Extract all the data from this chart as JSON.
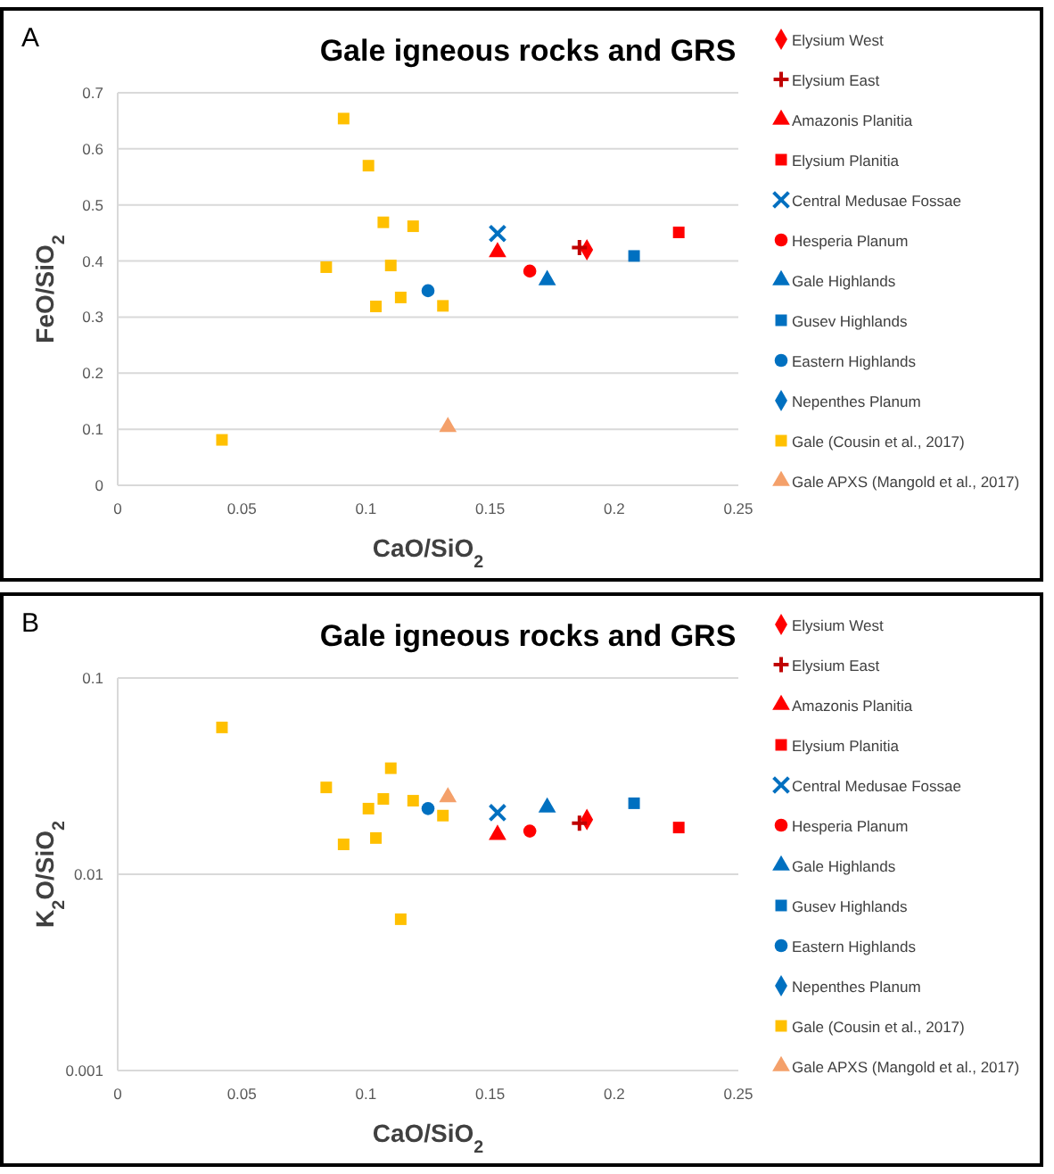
{
  "chart_data": [
    {
      "type": "scatter",
      "title": "Gale igneous rocks and GRS",
      "xlabel": "CaO/SiO$_{2}$",
      "ylabel": "FeO/SiO$_{2}$",
      "annotations": [
        "A"
      ],
      "xlim": [
        0,
        0.25
      ],
      "xticks": [
        0,
        0.05,
        0.1,
        0.15,
        0.2,
        0.25
      ],
      "ylim": [
        0,
        0.7
      ],
      "yticks": [
        0,
        0.1,
        0.2,
        0.3,
        0.4,
        0.5,
        0.6,
        0.7
      ],
      "grid": "y",
      "legend": "right",
      "series": [
        {
          "name": "Elysium West",
          "color": "#ff0000",
          "marker": "diamond",
          "x": [
            0.189
          ],
          "values": [
            0.42
          ]
        },
        {
          "name": "Elysium East",
          "color": "#c00000",
          "marker": "cross",
          "x": [
            0.186
          ],
          "values": [
            0.424
          ]
        },
        {
          "name": "Amazonis Planitia",
          "color": "#ff0000",
          "marker": "triangle",
          "x": [
            0.153
          ],
          "values": [
            0.416
          ]
        },
        {
          "name": "Elysium Planitia",
          "color": "#ff0000",
          "marker": "square",
          "x": [
            0.226
          ],
          "values": [
            0.451
          ]
        },
        {
          "name": "Central Medusae Fossae",
          "color": "#0070c0",
          "marker": "x",
          "x": [
            0.153
          ],
          "values": [
            0.449
          ]
        },
        {
          "name": "Hesperia Planum",
          "color": "#ff0000",
          "marker": "circle",
          "x": [
            0.166
          ],
          "values": [
            0.382
          ]
        },
        {
          "name": "Gale Highlands",
          "color": "#0070c0",
          "marker": "triangle",
          "x": [
            0.173
          ],
          "values": [
            0.366
          ]
        },
        {
          "name": "Gusev Highlands",
          "color": "#0070c0",
          "marker": "square",
          "x": [
            0.208
          ],
          "values": [
            0.409
          ]
        },
        {
          "name": "Eastern Highlands",
          "color": "#0070c0",
          "marker": "circle",
          "x": [
            0.125
          ],
          "values": [
            0.347
          ]
        },
        {
          "name": "Nepenthes Planum",
          "color": "#0070c0",
          "marker": "diamond",
          "x": [
            null
          ],
          "values": [
            null
          ]
        },
        {
          "name": "Gale (Cousin et al., 2017)",
          "color": "#ffc000",
          "marker": "square",
          "x": [
            0.091,
            0.101,
            0.107,
            0.119,
            0.084,
            0.11,
            0.104,
            0.114,
            0.131,
            0.042
          ],
          "values": [
            0.654,
            0.57,
            0.469,
            0.462,
            0.389,
            0.392,
            0.319,
            0.335,
            0.32,
            0.081
          ]
        },
        {
          "name": "Gale APXS (Mangold et al., 2017)",
          "color": "#f4a06a",
          "marker": "triangle",
          "x": [
            0.133
          ],
          "values": [
            0.104
          ]
        }
      ]
    },
    {
      "type": "scatter",
      "title": "Gale igneous rocks and GRS",
      "xlabel": "CaO/SiO$_{2}$",
      "ylabel": "K$_{2}$O/SiO$_{2}$",
      "annotations": [
        "B"
      ],
      "xlim": [
        0,
        0.25
      ],
      "xticks": [
        0,
        0.05,
        0.1,
        0.15,
        0.2,
        0.25
      ],
      "ylim": [
        0.001,
        0.1
      ],
      "yticks": [
        0.001,
        0.01,
        0.1
      ],
      "log": true,
      "grid": "y",
      "legend": "right",
      "series": [
        {
          "name": "Elysium West",
          "color": "#ff0000",
          "marker": "diamond",
          "x": [
            0.189
          ],
          "values": [
            0.019
          ]
        },
        {
          "name": "Elysium East",
          "color": "#c00000",
          "marker": "cross",
          "x": [
            0.186
          ],
          "values": [
            0.0182
          ]
        },
        {
          "name": "Amazonis Planitia",
          "color": "#ff0000",
          "marker": "triangle",
          "x": [
            0.153
          ],
          "values": [
            0.0159
          ]
        },
        {
          "name": "Elysium Planitia",
          "color": "#ff0000",
          "marker": "square",
          "x": [
            0.226
          ],
          "values": [
            0.0173
          ]
        },
        {
          "name": "Central Medusae Fossae",
          "color": "#0070c0",
          "marker": "x",
          "x": [
            0.153
          ],
          "values": [
            0.0206
          ]
        },
        {
          "name": "Hesperia Planum",
          "color": "#ff0000",
          "marker": "circle",
          "x": [
            0.166
          ],
          "values": [
            0.0166
          ]
        },
        {
          "name": "Gale Highlands",
          "color": "#0070c0",
          "marker": "triangle",
          "x": [
            0.173
          ],
          "values": [
            0.0219
          ]
        },
        {
          "name": "Gusev Highlands",
          "color": "#0070c0",
          "marker": "square",
          "x": [
            0.208
          ],
          "values": [
            0.023
          ]
        },
        {
          "name": "Eastern Highlands",
          "color": "#0070c0",
          "marker": "circle",
          "x": [
            0.125
          ],
          "values": [
            0.0216
          ]
        },
        {
          "name": "Nepenthes Planum",
          "color": "#0070c0",
          "marker": "diamond",
          "x": [
            null
          ],
          "values": [
            null
          ]
        },
        {
          "name": "Gale (Cousin et al., 2017)",
          "color": "#ffc000",
          "marker": "square",
          "x": [
            0.042,
            0.084,
            0.091,
            0.101,
            0.104,
            0.107,
            0.11,
            0.114,
            0.119,
            0.131
          ],
          "values": [
            0.056,
            0.0277,
            0.0142,
            0.0216,
            0.0153,
            0.0242,
            0.0347,
            0.0059,
            0.0237,
            0.0199
          ]
        },
        {
          "name": "Gale APXS (Mangold et al., 2017)",
          "color": "#f4a06a",
          "marker": "triangle",
          "x": [
            0.133
          ],
          "values": [
            0.0247
          ]
        }
      ]
    }
  ]
}
